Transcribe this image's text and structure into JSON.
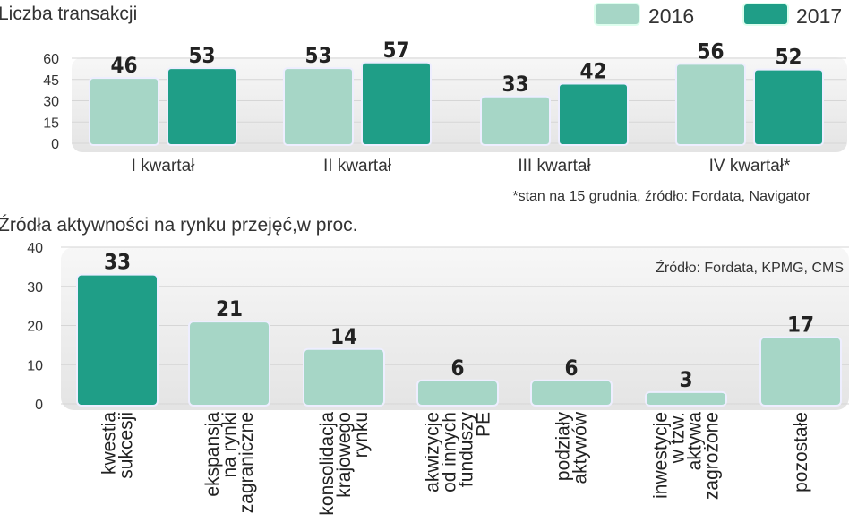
{
  "colors": {
    "y2016": "#a6d6c6",
    "y2017": "#1f9e87",
    "panel": "#ececec"
  },
  "chart_data": [
    {
      "type": "bar",
      "title": "Liczba transakcji",
      "categories": [
        "I kwartał",
        "II kwartał",
        "III kwartał",
        "IV kwartał*"
      ],
      "series": [
        {
          "name": "2016",
          "values": [
            46,
            53,
            33,
            56
          ]
        },
        {
          "name": "2017",
          "values": [
            53,
            57,
            42,
            52
          ]
        }
      ],
      "yticks": [
        "0",
        "15",
        "30",
        "45",
        "60"
      ],
      "ylim": [
        0,
        60
      ],
      "grid": true,
      "legend": "top-right",
      "note": "*stan na 15 grudnia, źródło: Fordata, Navigator"
    },
    {
      "type": "bar",
      "title": "Źródła aktywności na rynku przejęć,w proc.",
      "categories": [
        [
          "kwestia",
          "sukcesji"
        ],
        [
          "ekspansja",
          "na rynki",
          "zagraniczne"
        ],
        [
          "konsolidacja",
          "krajowego",
          "rynku"
        ],
        [
          "akwizycje",
          "od innych",
          "funduszy",
          "PE"
        ],
        [
          "podziały",
          "aktywów"
        ],
        [
          "inwestycje",
          "w tzw.",
          "aktywa",
          "zagrożone"
        ],
        [
          "pozostałe"
        ]
      ],
      "values": [
        33,
        21,
        14,
        6,
        6,
        3,
        17
      ],
      "highlight": [
        true,
        false,
        false,
        false,
        false,
        false,
        false
      ],
      "yticks": [
        "0",
        "10",
        "20",
        "30",
        "40"
      ],
      "ylim": [
        0,
        40
      ],
      "grid": true,
      "source": "Źródło: Fordata, KPMG, CMS"
    }
  ]
}
